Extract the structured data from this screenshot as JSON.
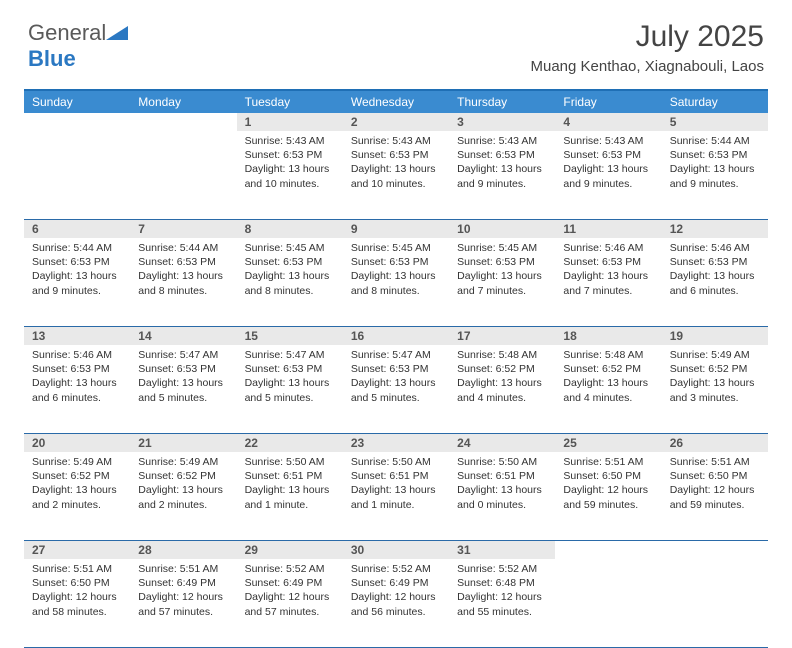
{
  "brand": {
    "name_part1": "General",
    "name_part2": "Blue"
  },
  "title": "July 2025",
  "location": "Muang Kenthao, Xiagnabouli, Laos",
  "colors": {
    "header_bg": "#3a8bd0",
    "border": "#2a6aa8",
    "daynum_bg": "#e9e9e9",
    "brand_blue": "#2b78c2"
  },
  "day_names": [
    "Sunday",
    "Monday",
    "Tuesday",
    "Wednesday",
    "Thursday",
    "Friday",
    "Saturday"
  ],
  "weeks": [
    [
      null,
      null,
      {
        "n": "1",
        "sr": "Sunrise: 5:43 AM",
        "ss": "Sunset: 6:53 PM",
        "d1": "Daylight: 13 hours",
        "d2": "and 10 minutes."
      },
      {
        "n": "2",
        "sr": "Sunrise: 5:43 AM",
        "ss": "Sunset: 6:53 PM",
        "d1": "Daylight: 13 hours",
        "d2": "and 10 minutes."
      },
      {
        "n": "3",
        "sr": "Sunrise: 5:43 AM",
        "ss": "Sunset: 6:53 PM",
        "d1": "Daylight: 13 hours",
        "d2": "and 9 minutes."
      },
      {
        "n": "4",
        "sr": "Sunrise: 5:43 AM",
        "ss": "Sunset: 6:53 PM",
        "d1": "Daylight: 13 hours",
        "d2": "and 9 minutes."
      },
      {
        "n": "5",
        "sr": "Sunrise: 5:44 AM",
        "ss": "Sunset: 6:53 PM",
        "d1": "Daylight: 13 hours",
        "d2": "and 9 minutes."
      }
    ],
    [
      {
        "n": "6",
        "sr": "Sunrise: 5:44 AM",
        "ss": "Sunset: 6:53 PM",
        "d1": "Daylight: 13 hours",
        "d2": "and 9 minutes."
      },
      {
        "n": "7",
        "sr": "Sunrise: 5:44 AM",
        "ss": "Sunset: 6:53 PM",
        "d1": "Daylight: 13 hours",
        "d2": "and 8 minutes."
      },
      {
        "n": "8",
        "sr": "Sunrise: 5:45 AM",
        "ss": "Sunset: 6:53 PM",
        "d1": "Daylight: 13 hours",
        "d2": "and 8 minutes."
      },
      {
        "n": "9",
        "sr": "Sunrise: 5:45 AM",
        "ss": "Sunset: 6:53 PM",
        "d1": "Daylight: 13 hours",
        "d2": "and 8 minutes."
      },
      {
        "n": "10",
        "sr": "Sunrise: 5:45 AM",
        "ss": "Sunset: 6:53 PM",
        "d1": "Daylight: 13 hours",
        "d2": "and 7 minutes."
      },
      {
        "n": "11",
        "sr": "Sunrise: 5:46 AM",
        "ss": "Sunset: 6:53 PM",
        "d1": "Daylight: 13 hours",
        "d2": "and 7 minutes."
      },
      {
        "n": "12",
        "sr": "Sunrise: 5:46 AM",
        "ss": "Sunset: 6:53 PM",
        "d1": "Daylight: 13 hours",
        "d2": "and 6 minutes."
      }
    ],
    [
      {
        "n": "13",
        "sr": "Sunrise: 5:46 AM",
        "ss": "Sunset: 6:53 PM",
        "d1": "Daylight: 13 hours",
        "d2": "and 6 minutes."
      },
      {
        "n": "14",
        "sr": "Sunrise: 5:47 AM",
        "ss": "Sunset: 6:53 PM",
        "d1": "Daylight: 13 hours",
        "d2": "and 5 minutes."
      },
      {
        "n": "15",
        "sr": "Sunrise: 5:47 AM",
        "ss": "Sunset: 6:53 PM",
        "d1": "Daylight: 13 hours",
        "d2": "and 5 minutes."
      },
      {
        "n": "16",
        "sr": "Sunrise: 5:47 AM",
        "ss": "Sunset: 6:53 PM",
        "d1": "Daylight: 13 hours",
        "d2": "and 5 minutes."
      },
      {
        "n": "17",
        "sr": "Sunrise: 5:48 AM",
        "ss": "Sunset: 6:52 PM",
        "d1": "Daylight: 13 hours",
        "d2": "and 4 minutes."
      },
      {
        "n": "18",
        "sr": "Sunrise: 5:48 AM",
        "ss": "Sunset: 6:52 PM",
        "d1": "Daylight: 13 hours",
        "d2": "and 4 minutes."
      },
      {
        "n": "19",
        "sr": "Sunrise: 5:49 AM",
        "ss": "Sunset: 6:52 PM",
        "d1": "Daylight: 13 hours",
        "d2": "and 3 minutes."
      }
    ],
    [
      {
        "n": "20",
        "sr": "Sunrise: 5:49 AM",
        "ss": "Sunset: 6:52 PM",
        "d1": "Daylight: 13 hours",
        "d2": "and 2 minutes."
      },
      {
        "n": "21",
        "sr": "Sunrise: 5:49 AM",
        "ss": "Sunset: 6:52 PM",
        "d1": "Daylight: 13 hours",
        "d2": "and 2 minutes."
      },
      {
        "n": "22",
        "sr": "Sunrise: 5:50 AM",
        "ss": "Sunset: 6:51 PM",
        "d1": "Daylight: 13 hours",
        "d2": "and 1 minute."
      },
      {
        "n": "23",
        "sr": "Sunrise: 5:50 AM",
        "ss": "Sunset: 6:51 PM",
        "d1": "Daylight: 13 hours",
        "d2": "and 1 minute."
      },
      {
        "n": "24",
        "sr": "Sunrise: 5:50 AM",
        "ss": "Sunset: 6:51 PM",
        "d1": "Daylight: 13 hours",
        "d2": "and 0 minutes."
      },
      {
        "n": "25",
        "sr": "Sunrise: 5:51 AM",
        "ss": "Sunset: 6:50 PM",
        "d1": "Daylight: 12 hours",
        "d2": "and 59 minutes."
      },
      {
        "n": "26",
        "sr": "Sunrise: 5:51 AM",
        "ss": "Sunset: 6:50 PM",
        "d1": "Daylight: 12 hours",
        "d2": "and 59 minutes."
      }
    ],
    [
      {
        "n": "27",
        "sr": "Sunrise: 5:51 AM",
        "ss": "Sunset: 6:50 PM",
        "d1": "Daylight: 12 hours",
        "d2": "and 58 minutes."
      },
      {
        "n": "28",
        "sr": "Sunrise: 5:51 AM",
        "ss": "Sunset: 6:49 PM",
        "d1": "Daylight: 12 hours",
        "d2": "and 57 minutes."
      },
      {
        "n": "29",
        "sr": "Sunrise: 5:52 AM",
        "ss": "Sunset: 6:49 PM",
        "d1": "Daylight: 12 hours",
        "d2": "and 57 minutes."
      },
      {
        "n": "30",
        "sr": "Sunrise: 5:52 AM",
        "ss": "Sunset: 6:49 PM",
        "d1": "Daylight: 12 hours",
        "d2": "and 56 minutes."
      },
      {
        "n": "31",
        "sr": "Sunrise: 5:52 AM",
        "ss": "Sunset: 6:48 PM",
        "d1": "Daylight: 12 hours",
        "d2": "and 55 minutes."
      },
      null,
      null
    ]
  ]
}
